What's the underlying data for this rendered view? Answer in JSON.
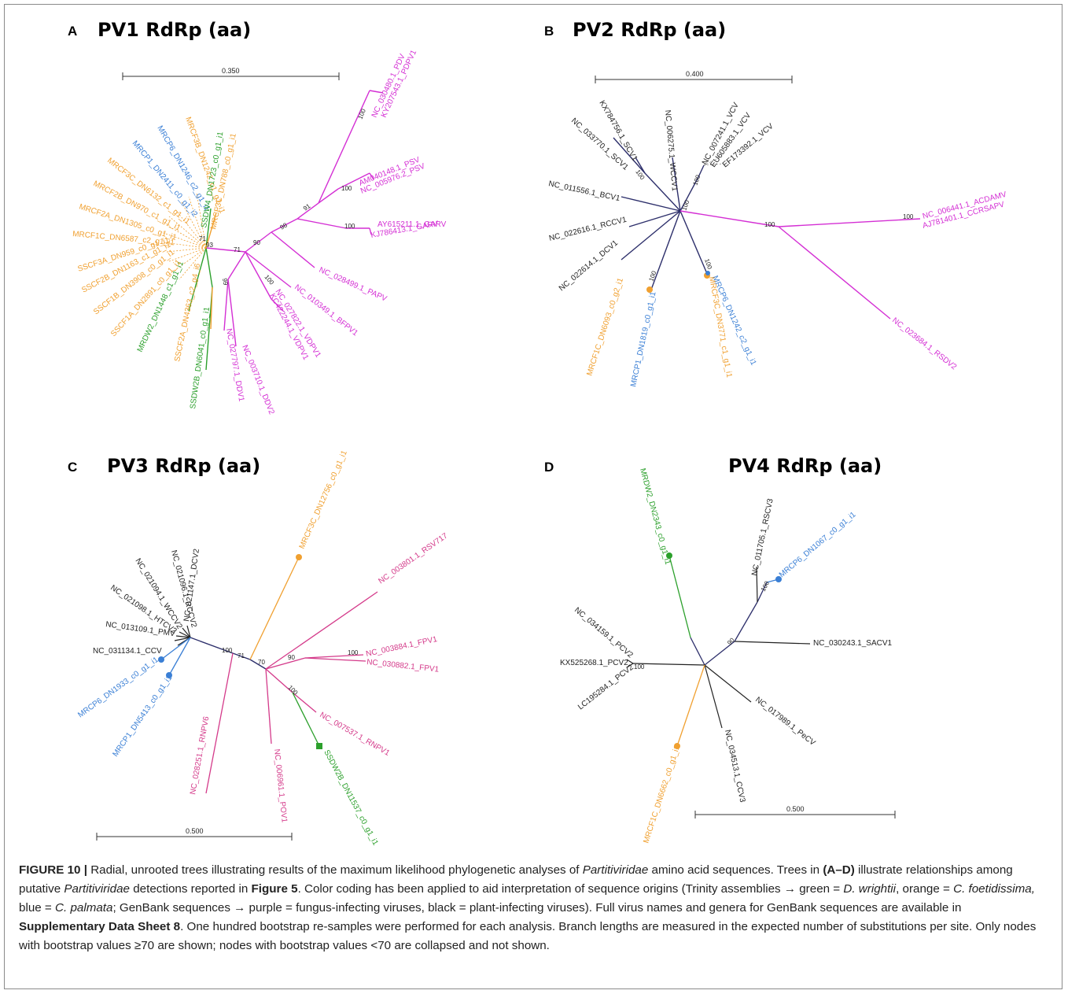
{
  "panels": {
    "A": {
      "letter": "A",
      "title": "PV1 RdRp (aa)",
      "scale": "0.350"
    },
    "B": {
      "letter": "B",
      "title": "PV2 RdRp (aa)",
      "scale": "0.400"
    },
    "C": {
      "letter": "C",
      "title": "PV3 RdRp (aa)",
      "scale": "0.500"
    },
    "D": {
      "letter": "D",
      "title": "PV4 RdRp (aa)",
      "scale": "0.500"
    }
  },
  "colors": {
    "green": "#2ca02c",
    "orange": "#f0a030",
    "blue": "#3a7fd5",
    "purple": "#d42fd4",
    "black": "#222222",
    "navy": "#2d2f6b",
    "magenta_c": "#d43a8a"
  },
  "trees": {
    "A": {
      "labels": [
        "NC_030480.1_PDV",
        "KY207543.1_PDPV1",
        "AM040148.1_PSV",
        "NC_005976.2_PSV",
        "AY615211.1_GARV",
        "KJ786413.1_GARV",
        "NC_028499.1_PAPV",
        "NC_010349.1_BFPV1",
        "NC_027822.1_VDPV1",
        "KC422244.1_VDPV1",
        "NC_003710.1_DDV2",
        "NC_027797.1_DDV1",
        "SSDW2B_DN6041_c0_g1_i1",
        "SSCF2A_DN4363_c2_g4_i6",
        "MRDW2_DN1448_c1_g1_i1",
        "SSCF1A_DN2891_c0_g1_i1",
        "SSCF1B_DN3908_c0_g1_i1",
        "SSCF2B_DN1163_c1_g1_i1",
        "SSCF3A_DN959_c0_g1_i1",
        "MRCF1C_DN6587_c2_g1_i1",
        "MRCF2A_DN1305_c0_g1_i1",
        "MRCF2B_DN970_c1_g1_i1",
        "MRCF3C_DN6132_c1_g1_i1",
        "MRCP1_DN2411_c0_g1_i2",
        "MRCP6_DN1246_c2_g1_i1",
        "MRCF3B_DN1242_c1_g1_i1",
        "SSDW4_DN1723_c0_g1_i1",
        "MRCF3C_DN788_c0_g1_i1"
      ],
      "bootstrap": [
        "100",
        "100",
        "100",
        "91",
        "98",
        "90",
        "71",
        "100",
        "99",
        "93",
        "71"
      ]
    },
    "B": {
      "labels": [
        "NC_006441.1_ACDAMV",
        "AJ781401.1_CCRSAPV",
        "NC_023684.1_RSDV2",
        "NC_007241.1_VCV",
        "EU605883.1_VCV",
        "EF173392.1_VCV",
        "NC_006275.1_WCCV1",
        "KX784756.1_SCV1",
        "NC_033770.1_SCV1",
        "NC_011556.1_BCV1",
        "NC_022616.1_RCCV1",
        "NC_022614.1_DCV1",
        "MRCF1C_DN6093_c0_g2_i1",
        "MRCP1_DN1819_c0_g1_i1",
        "MRCF3C_DN3771_c1_g1_i1",
        "MRCP6_DN1242_c2_g1_i1"
      ],
      "bootstrap": [
        "100",
        "100",
        "100",
        "100",
        "100",
        "100",
        "100"
      ]
    },
    "C": {
      "labels": [
        "NC_021147.1_DCV2",
        "NC_021096.1_RCCV2",
        "NC_021094.1_WCCV2",
        "NC_021098.1_HTCV2",
        "NC_013109.1_PMV",
        "NC_031134.1_CCV",
        "MRCP6_DN1933_c0_g1_i1",
        "MRCP1_DN5413_c0_g1_i1",
        "MRCF3C_DN12756_c0_g1_i1",
        "NC_003801.1_RSV717",
        "NC_003884.1_FPV1",
        "NC_030882.1_FPV1",
        "NC_007537.1_RNPV1",
        "SSDW2B_DN11537_c0_g1_i1",
        "NC_006961.1_POV1",
        "NC_028251.1_RNPV6"
      ],
      "bootstrap": [
        "100",
        "71",
        "70",
        "90",
        "100",
        "100"
      ]
    },
    "D": {
      "labels": [
        "MRDW2_DN2343_c0_g1_i1",
        "NC_011705.1_RSCV3",
        "MRCP6_DN1067_c0_g1_i1",
        "NC_030243.1_SACV1",
        "NC_017989.1_PeCV",
        "NC_034513.1_CCV3",
        "MRCF1C_DN6662_c0_g1_i1",
        "LC195284.1_PCV2",
        "KX525268.1_PCV2",
        "NC_034159.1_PCV2"
      ],
      "bootstrap": [
        "100",
        "90",
        "100"
      ]
    }
  },
  "caption": {
    "figure_label": "FIGURE 10 |",
    "t1": " Radial, unrooted trees illustrating results of the maximum likelihood phylogenetic analyses of ",
    "i1": "Partitiviridae",
    "t2": " amino acid sequences. Trees in ",
    "b1": "(A–D)",
    "t3": " illustrate relationships among putative ",
    "i2": "Partitiviridae",
    "t4": " detections reported in ",
    "b2": "Figure 5",
    "t5": ". Color coding has been applied to aid interpretation of sequence origins (Trinity assemblies → green = ",
    "i3": "D. wrightii",
    "t6": ", orange = ",
    "i4": "C. foetidissima,",
    "t7": " blue = ",
    "i5": "C. palmata",
    "t8": "; GenBank sequences → purple = fungus-infecting viruses, black = plant-infecting viruses). Full virus names and genera for GenBank sequences are available in ",
    "b3": "Supplementary Data Sheet 8",
    "t9": ". One hundred bootstrap re-samples were performed for each analysis. Branch lengths are measured in the expected number of substitutions per site. Only nodes with bootstrap values ≥70 are shown; nodes with bootstrap values <70 are collapsed and not shown."
  }
}
